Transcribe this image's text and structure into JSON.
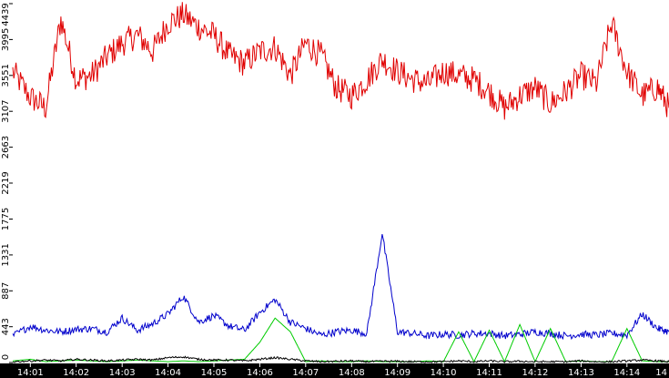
{
  "chart_data": {
    "type": "line",
    "title": "",
    "xlabel": "",
    "ylabel": "",
    "xlim": [
      "14:00:37",
      "14:14:55"
    ],
    "ylim": [
      0,
      4439
    ],
    "grid": false,
    "legend": "none",
    "background": "#ffffff",
    "x_ticks": [
      "14:01",
      "14:02",
      "14:03",
      "14:04",
      "14:05",
      "14:06",
      "14:07",
      "14:08",
      "14:09",
      "14:10",
      "14:11",
      "14:12",
      "14:13",
      "14:14",
      "14"
    ],
    "y_ticks": [
      0,
      443,
      887,
      1331,
      1775,
      2219,
      2663,
      3107,
      3551,
      3995,
      4439
    ],
    "x": [
      "14:00:37",
      "14:01:00",
      "14:01:20",
      "14:01:40",
      "14:02:00",
      "14:02:20",
      "14:02:40",
      "14:03:00",
      "14:03:20",
      "14:03:40",
      "14:04:00",
      "14:04:20",
      "14:04:40",
      "14:05:00",
      "14:05:20",
      "14:05:40",
      "14:06:00",
      "14:06:20",
      "14:06:40",
      "14:07:00",
      "14:07:20",
      "14:07:40",
      "14:08:00",
      "14:08:20",
      "14:08:40",
      "14:09:00",
      "14:09:20",
      "14:09:40",
      "14:10:00",
      "14:10:20",
      "14:10:40",
      "14:11:00",
      "14:11:20",
      "14:11:40",
      "14:12:00",
      "14:12:20",
      "14:12:40",
      "14:13:00",
      "14:13:20",
      "14:13:40",
      "14:14:00",
      "14:14:20",
      "14:14:40",
      "14:14:55"
    ],
    "series": [
      {
        "color": "#e00000",
        "values": [
          3600,
          3280,
          3150,
          4250,
          3500,
          3550,
          3780,
          3950,
          4050,
          3850,
          4200,
          4300,
          4150,
          4050,
          3800,
          3700,
          3850,
          3900,
          3550,
          3950,
          3800,
          3400,
          3300,
          3500,
          3750,
          3600,
          3500,
          3450,
          3600,
          3550,
          3500,
          3350,
          3150,
          3300,
          3400,
          3200,
          3350,
          3550,
          3450,
          4200,
          3600,
          3300,
          3400,
          3150
        ]
      },
      {
        "color": "#0000cc",
        "values": [
          330,
          450,
          400,
          380,
          410,
          420,
          380,
          550,
          400,
          480,
          600,
          820,
          500,
          580,
          450,
          400,
          620,
          780,
          500,
          420,
          340,
          380,
          400,
          360,
          1600,
          380,
          360,
          330,
          350,
          340,
          360,
          360,
          330,
          350,
          380,
          360,
          330,
          350,
          340,
          360,
          340,
          600,
          420,
          380
        ]
      },
      {
        "color": "#00cc00",
        "values": [
          20,
          40,
          10,
          20,
          30,
          20,
          10,
          20,
          30,
          20,
          10,
          20,
          10,
          20,
          30,
          40,
          250,
          550,
          380,
          10,
          20,
          10,
          10,
          20,
          10,
          10,
          10,
          20,
          10,
          380,
          10,
          400,
          10,
          470,
          10,
          420,
          10,
          20,
          10,
          10,
          420,
          20,
          10,
          10
        ]
      },
      {
        "color": "#000000",
        "values": [
          10,
          20,
          30,
          20,
          40,
          30,
          20,
          30,
          40,
          30,
          60,
          70,
          40,
          30,
          30,
          20,
          40,
          60,
          40,
          20,
          10,
          15,
          20,
          10,
          15,
          15,
          10,
          10,
          10,
          20,
          10,
          20,
          10,
          15,
          10,
          10,
          10,
          20,
          10,
          10,
          20,
          30,
          20,
          10
        ]
      }
    ]
  }
}
